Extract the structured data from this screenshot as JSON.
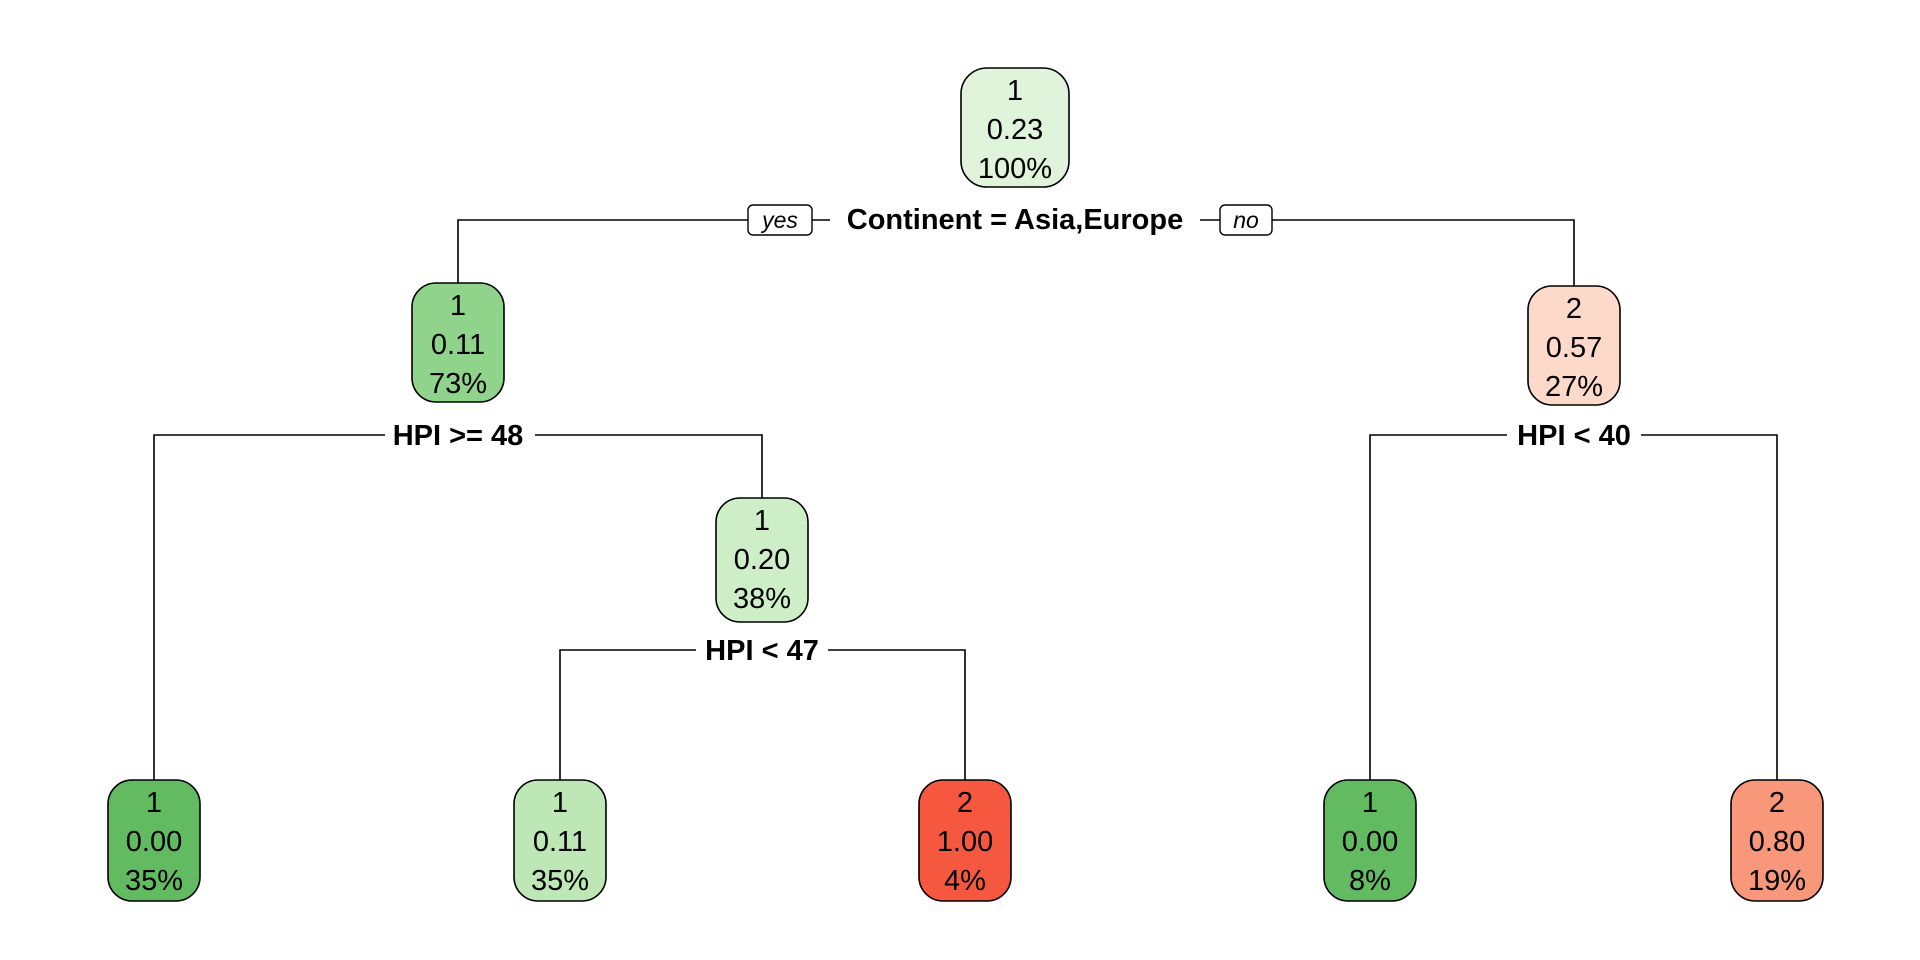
{
  "tree": {
    "nodes": [
      {
        "id": "root",
        "class": "1",
        "prob": "0.23",
        "pct": "100%",
        "fill": "#e0f3db"
      },
      {
        "id": "n2",
        "class": "1",
        "prob": "0.11",
        "pct": "73%",
        "fill": "#90d38a"
      },
      {
        "id": "n3",
        "class": "2",
        "prob": "0.57",
        "pct": "27%",
        "fill": "#fdd9ca"
      },
      {
        "id": "n5",
        "class": "1",
        "prob": "0.20",
        "pct": "38%",
        "fill": "#cdeec6"
      },
      {
        "id": "leaf1",
        "class": "1",
        "prob": "0.00",
        "pct": "35%",
        "fill": "#63bb61"
      },
      {
        "id": "leaf2",
        "class": "1",
        "prob": "0.11",
        "pct": "35%",
        "fill": "#bde7b5"
      },
      {
        "id": "leaf3",
        "class": "2",
        "prob": "1.00",
        "pct": "4%",
        "fill": "#f6583f"
      },
      {
        "id": "leaf4",
        "class": "1",
        "prob": "0.00",
        "pct": "8%",
        "fill": "#63bb61"
      },
      {
        "id": "leaf5",
        "class": "2",
        "prob": "0.80",
        "pct": "19%",
        "fill": "#f8977a"
      }
    ],
    "splits": [
      {
        "id": "split-root",
        "label": "Continent = Asia,Europe"
      },
      {
        "id": "split-n2",
        "label": "HPI >= 48"
      },
      {
        "id": "split-n3",
        "label": "HPI < 40"
      },
      {
        "id": "split-n5",
        "label": "HPI < 47"
      }
    ],
    "branch_tags": {
      "yes": "yes",
      "no": "no"
    }
  }
}
